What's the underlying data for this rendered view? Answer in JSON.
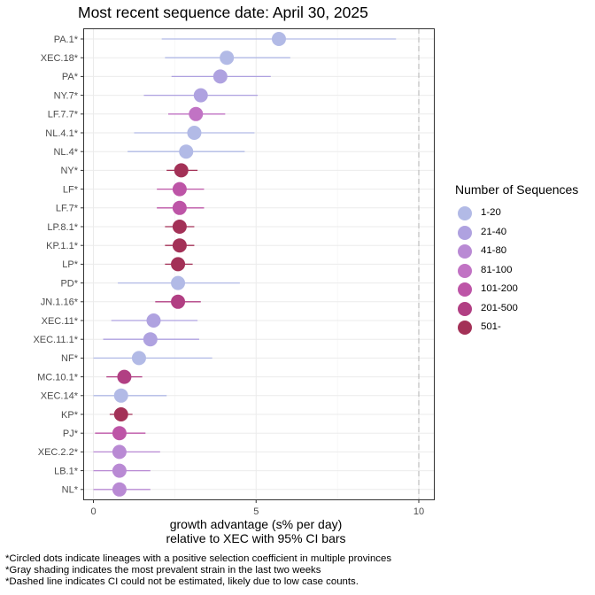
{
  "chart_data": {
    "type": "scatter",
    "title": "Most recent sequence date: April 30, 2025",
    "xlabel_line1": "growth advantage (s% per day)",
    "xlabel_line2": "relative to  XEC  with 95% CI bars",
    "xlim": [
      -0.6,
      10.5
    ],
    "x_ticks": [
      0,
      5,
      10
    ],
    "dashed_vline_x": 10,
    "grid": true,
    "legend_position": "right",
    "legend": {
      "title": "Number of Sequences",
      "items": [
        {
          "label": "1-20",
          "color": "#b2bae6"
        },
        {
          "label": "21-40",
          "color": "#afa2e0"
        },
        {
          "label": "41-80",
          "color": "#b98ad4"
        },
        {
          "label": "81-100",
          "color": "#c173c4"
        },
        {
          "label": "101-200",
          "color": "#bd55a7"
        },
        {
          "label": "201-500",
          "color": "#b13f83"
        },
        {
          "label": "501-",
          "color": "#a33157"
        }
      ]
    },
    "lineages": [
      {
        "name": "PA.1*",
        "x": 5.7,
        "lo": 2.1,
        "hi": 9.3,
        "bin": 0
      },
      {
        "name": "XEC.18*",
        "x": 4.1,
        "lo": 2.2,
        "hi": 6.05,
        "bin": 0
      },
      {
        "name": "PA*",
        "x": 3.9,
        "lo": 2.4,
        "hi": 5.45,
        "bin": 1
      },
      {
        "name": "NY.7*",
        "x": 3.3,
        "lo": 1.55,
        "hi": 5.05,
        "bin": 1
      },
      {
        "name": "LF.7.7*",
        "x": 3.15,
        "lo": 2.3,
        "hi": 4.05,
        "bin": 3
      },
      {
        "name": "NL.4.1*",
        "x": 3.1,
        "lo": 1.25,
        "hi": 4.95,
        "bin": 0
      },
      {
        "name": "NL.4*",
        "x": 2.85,
        "lo": 1.05,
        "hi": 4.65,
        "bin": 0
      },
      {
        "name": "NY*",
        "x": 2.7,
        "lo": 2.25,
        "hi": 3.2,
        "bin": 6
      },
      {
        "name": "LF*",
        "x": 2.65,
        "lo": 1.95,
        "hi": 3.4,
        "bin": 4
      },
      {
        "name": "LF.7*",
        "x": 2.65,
        "lo": 1.95,
        "hi": 3.4,
        "bin": 4
      },
      {
        "name": "LP.8.1*",
        "x": 2.65,
        "lo": 2.2,
        "hi": 3.1,
        "bin": 6
      },
      {
        "name": "KP.1.1*",
        "x": 2.65,
        "lo": 2.2,
        "hi": 3.1,
        "bin": 6
      },
      {
        "name": "LP*",
        "x": 2.6,
        "lo": 2.2,
        "hi": 3.05,
        "bin": 6
      },
      {
        "name": "PD*",
        "x": 2.6,
        "lo": 0.75,
        "hi": 4.5,
        "bin": 0
      },
      {
        "name": "JN.1.16*",
        "x": 2.6,
        "lo": 1.9,
        "hi": 3.3,
        "bin": 5
      },
      {
        "name": "XEC.11*",
        "x": 1.85,
        "lo": 0.55,
        "hi": 3.2,
        "bin": 1
      },
      {
        "name": "XEC.11.1*",
        "x": 1.75,
        "lo": 0.3,
        "hi": 3.25,
        "bin": 1
      },
      {
        "name": "NF*",
        "x": 1.4,
        "lo": 0.0,
        "hi": 3.65,
        "bin": 0
      },
      {
        "name": "MC.10.1*",
        "x": 0.95,
        "lo": 0.4,
        "hi": 1.5,
        "bin": 5
      },
      {
        "name": "XEC.14*",
        "x": 0.85,
        "lo": 0.0,
        "hi": 2.25,
        "bin": 0
      },
      {
        "name": "KP*",
        "x": 0.85,
        "lo": 0.5,
        "hi": 1.2,
        "bin": 6
      },
      {
        "name": "PJ*",
        "x": 0.8,
        "lo": 0.05,
        "hi": 1.6,
        "bin": 4
      },
      {
        "name": "XEC.2.2*",
        "x": 0.8,
        "lo": 0.0,
        "hi": 2.05,
        "bin": 2
      },
      {
        "name": "LB.1*",
        "x": 0.8,
        "lo": 0.0,
        "hi": 1.75,
        "bin": 2
      },
      {
        "name": "NL*",
        "x": 0.8,
        "lo": 0.0,
        "hi": 1.75,
        "bin": 2
      }
    ]
  },
  "footnotes": [
    "*Circled dots indicate lineages with a positive selection coefficient in multiple provinces",
    "*Gray shading indicates the most prevalent strain in the last two weeks",
    "*Dashed line indicates CI could not be estimated, likely due to low case counts."
  ]
}
